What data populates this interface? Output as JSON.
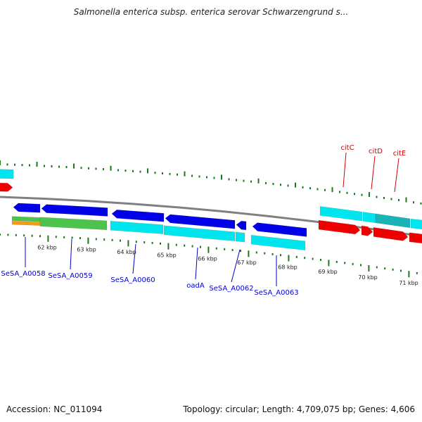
{
  "title": "Salmonella enterica subsp. enterica serovar Schwarzengrund s...",
  "footer": {
    "accession": "Accession: NC_011094",
    "topology": "Topology: circular; Length: 4,709,075 bp; Genes: 4,606"
  },
  "colors": {
    "backbone": "#808080",
    "tick": "#1a7a1a",
    "forward_cds": "#0000e6",
    "reverse_cds": "#00e5ee",
    "rna": "#4dc34d",
    "misc": "#f39c12",
    "red_feature": "#ee0000",
    "teal_feature": "#1ab3b8",
    "label_blue": "#0000cc",
    "label_red": "#cc0000"
  },
  "ticks": [
    {
      "label": "62 kbp"
    },
    {
      "label": "63 kbp"
    },
    {
      "label": "64 kbp"
    },
    {
      "label": "65 kbp"
    },
    {
      "label": "66 kbp"
    },
    {
      "label": "67 kbp"
    },
    {
      "label": "68 kbp"
    },
    {
      "label": "69 kbp"
    },
    {
      "label": "70 kbp"
    },
    {
      "label": "71 kbp"
    }
  ],
  "gene_labels": [
    {
      "id": "g1",
      "text": "SeSA_A0058",
      "color": "blue"
    },
    {
      "id": "g2",
      "text": "SeSA_A0059",
      "color": "blue"
    },
    {
      "id": "g3",
      "text": "SeSA_A0060",
      "color": "blue"
    },
    {
      "id": "g4",
      "text": "oadA",
      "color": "blue"
    },
    {
      "id": "g5",
      "text": "SeSA_A0062",
      "color": "blue"
    },
    {
      "id": "g6",
      "text": "SeSA_A0063",
      "color": "blue"
    },
    {
      "id": "g7",
      "text": "citC",
      "color": "red"
    },
    {
      "id": "g8",
      "text": "citD",
      "color": "red"
    },
    {
      "id": "g9",
      "text": "citE",
      "color": "red"
    }
  ]
}
